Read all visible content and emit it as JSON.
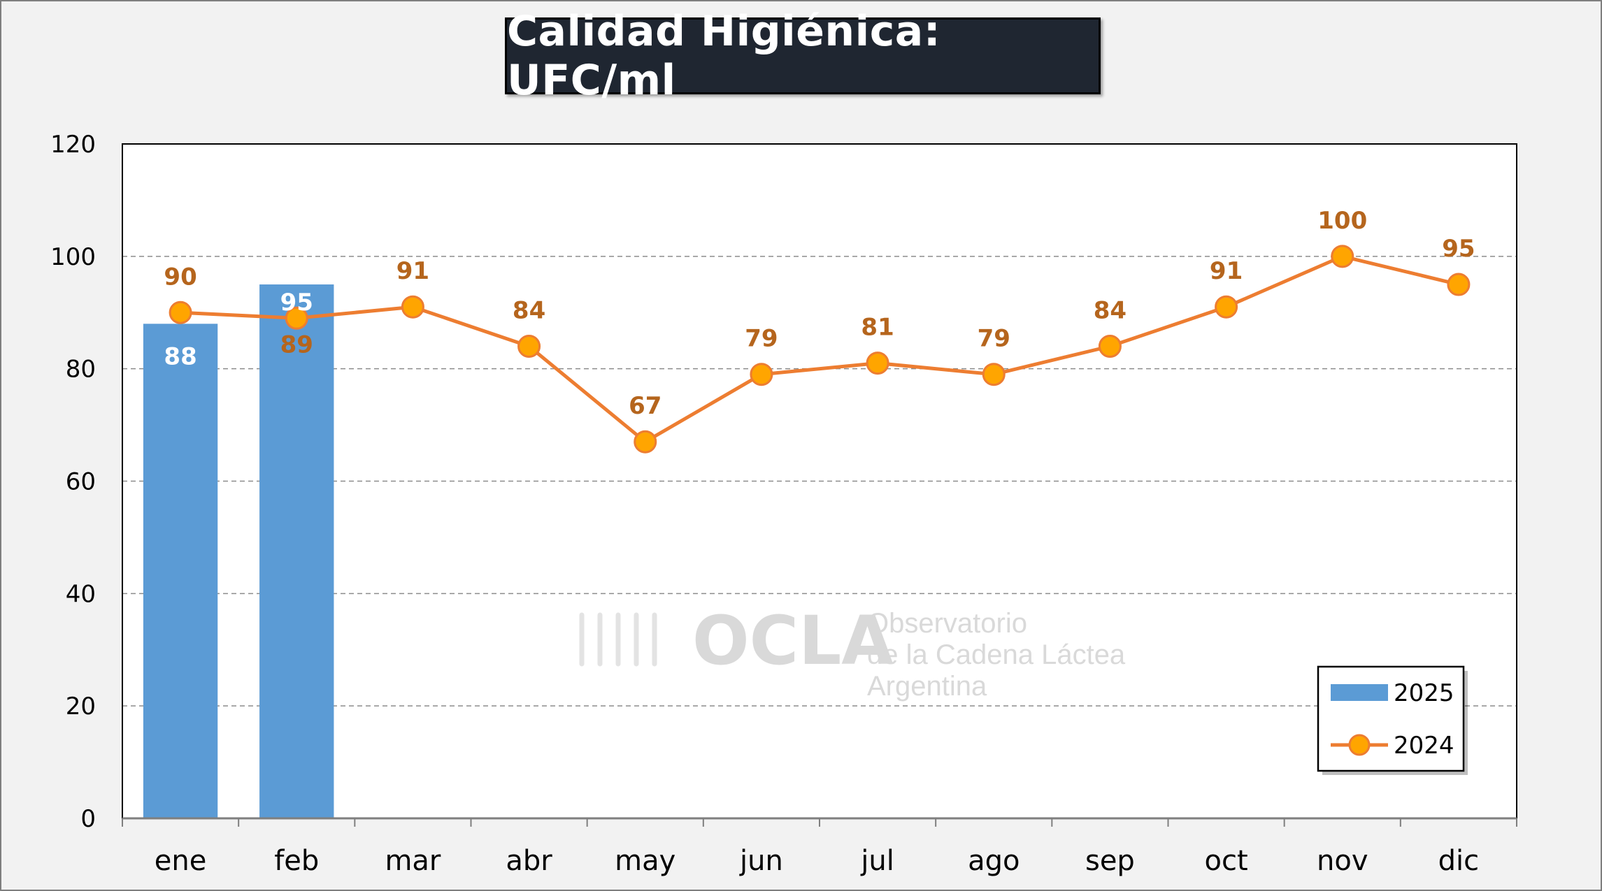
{
  "chart_data": {
    "type": "bar+line",
    "title": "Calidad Higiénica: UFC/ml",
    "categories": [
      "ene",
      "feb",
      "mar",
      "abr",
      "may",
      "jun",
      "jul",
      "ago",
      "sep",
      "oct",
      "nov",
      "dic"
    ],
    "ylim": [
      0,
      120
    ],
    "yticks": [
      0,
      20,
      40,
      60,
      80,
      100,
      120
    ],
    "grid": "horizontal dashed",
    "legend_position": "bottom-right",
    "series": [
      {
        "name": "2025",
        "type": "bar",
        "color": "#5b9bd5",
        "values": [
          88,
          95,
          null,
          null,
          null,
          null,
          null,
          null,
          null,
          null,
          null,
          null
        ]
      },
      {
        "name": "2024",
        "type": "line",
        "color": "#ed7d31",
        "marker_color": "#ffa500",
        "values": [
          90,
          89,
          91,
          84,
          67,
          79,
          81,
          79,
          84,
          91,
          100,
          95
        ]
      }
    ]
  },
  "watermark": {
    "brand": "OCLA",
    "line1": "Observatorio",
    "line2": "de la Cadena Láctea",
    "line3": "Argentina"
  }
}
